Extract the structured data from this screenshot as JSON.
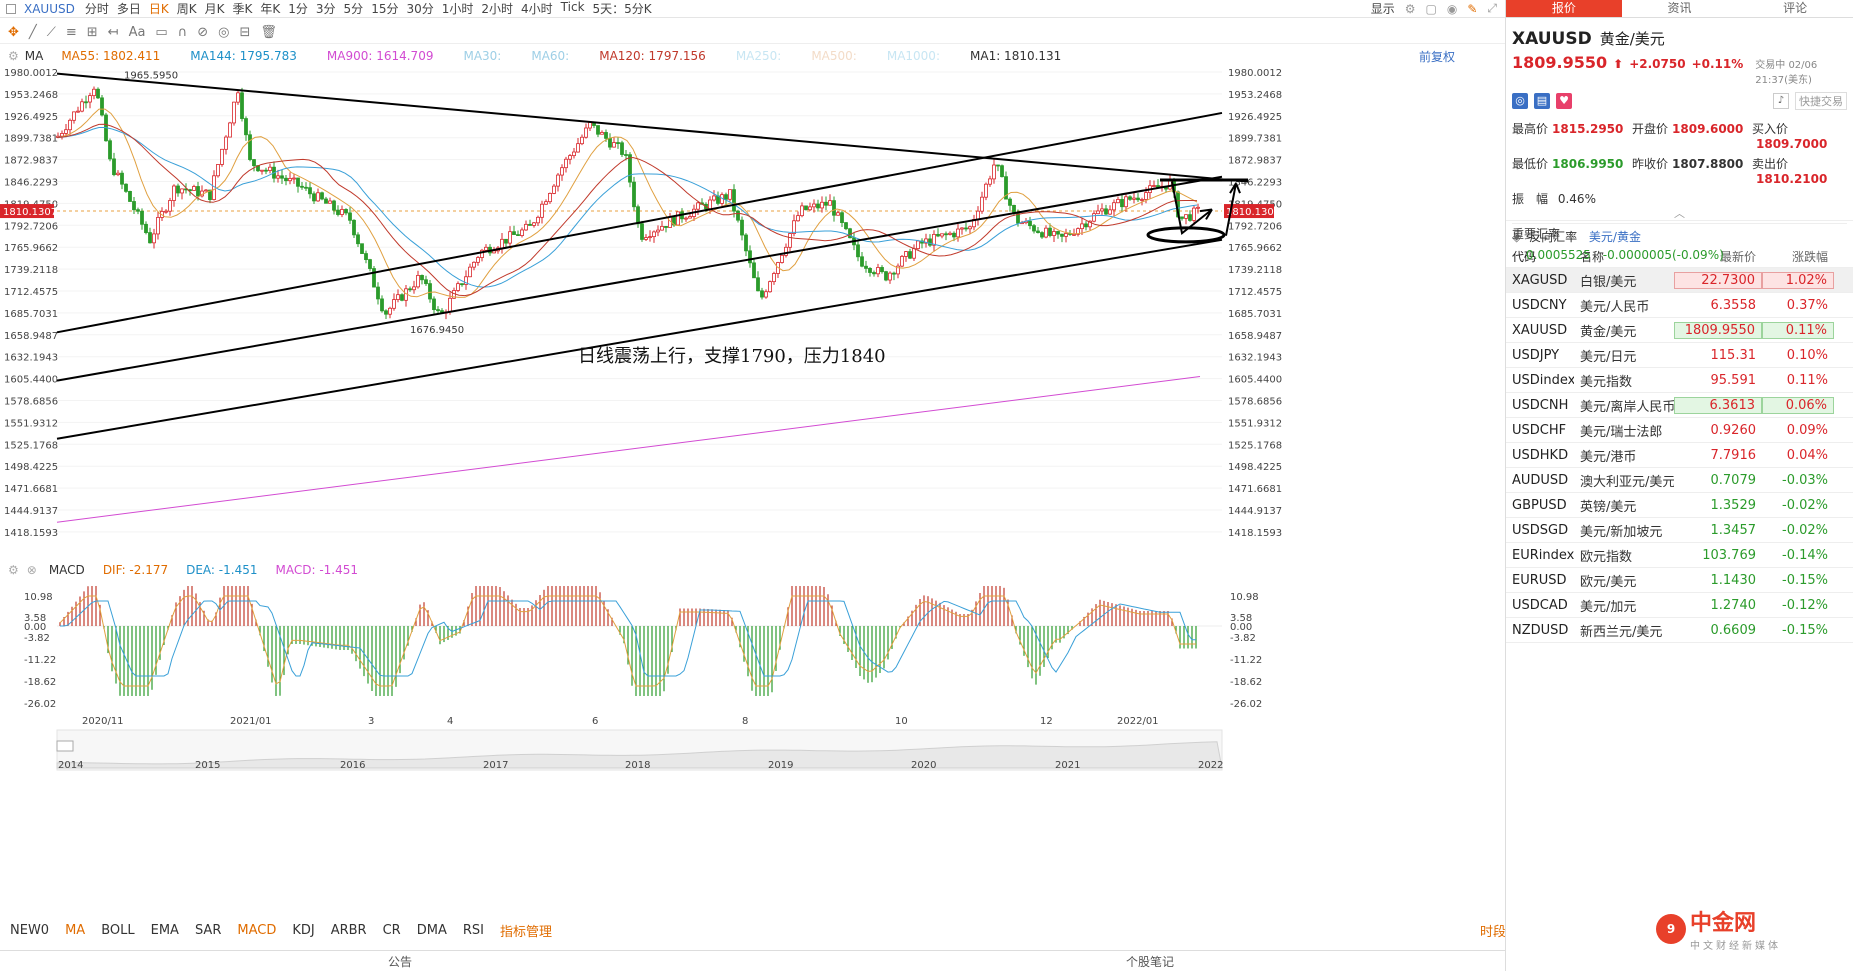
{
  "topbar": {
    "symbol": "XAUUSD",
    "tabs": [
      "分时",
      "多日",
      "日K",
      "周K",
      "月K",
      "季K",
      "年K",
      "1分",
      "3分",
      "5分",
      "15分",
      "30分",
      "1小时",
      "2小时",
      "4小时",
      "Tick",
      "5天：5分K"
    ],
    "active_tab": "日K",
    "display_label": "显示"
  },
  "ma_bar": {
    "label": "MA",
    "items": [
      {
        "text": "MA55: 1802.411",
        "color": "#e06c00"
      },
      {
        "text": "MA144: 1795.783",
        "color": "#1e90c8"
      },
      {
        "text": "MA900: 1614.709",
        "color": "#d24bd2"
      },
      {
        "text": "MA30:",
        "color": "#9ecfe6"
      },
      {
        "text": "MA60:",
        "color": "#9ecfe6"
      },
      {
        "text": "MA120: 1797.156",
        "color": "#c0392b"
      },
      {
        "text": "MA250:",
        "color": "#c8e6f3"
      },
      {
        "text": "MA500:",
        "color": "#f3dcc8"
      },
      {
        "text": "MA1000:",
        "color": "#c8e6f3"
      },
      {
        "text": "MA1: 1810.131",
        "color": "#333333"
      }
    ],
    "adjust": "前复权"
  },
  "price_axis": [
    "1980.0012",
    "1953.2468",
    "1926.4925",
    "1899.7381",
    "1872.9837",
    "1846.2293",
    "1819.4750",
    "1792.7206",
    "1765.9662",
    "1739.2118",
    "1712.4575",
    "1685.7031",
    "1658.9487",
    "1632.1943",
    "1605.4400",
    "1578.6856",
    "1551.9312",
    "1525.1768",
    "1498.4225",
    "1471.6681",
    "1444.9137",
    "1418.1593"
  ],
  "current_price_tag": "1810.1307",
  "annotations": {
    "high": "1965.5950",
    "low": "1676.9450",
    "comment": "日线震荡上行，支撑1790，压力1840"
  },
  "macd_bar": {
    "label": "MACD",
    "dif": "DIF: -2.177",
    "dea": "DEA: -1.451",
    "macd": "MACD: -1.451"
  },
  "macd_axis": [
    "10.98",
    "3.58",
    "0.00",
    "-3.82",
    "-11.22",
    "-18.62",
    "-26.02"
  ],
  "date_axis": [
    "2020/11",
    "2021/01",
    "3",
    "4",
    "6",
    "8",
    "10",
    "12",
    "2022/01"
  ],
  "overview_years": [
    "2014",
    "2015",
    "2016",
    "2017",
    "2018",
    "2019",
    "2020",
    "2021",
    "2022"
  ],
  "indicator_tabs": [
    "NEW0",
    "MA",
    "BOLL",
    "EMA",
    "SAR",
    "MACD",
    "KDJ",
    "ARBR",
    "CR",
    "DMA",
    "RSI",
    "指标管理"
  ],
  "indicator_active": [
    "MA",
    "MACD"
  ],
  "time_label": "时段",
  "footer": {
    "left": "公告",
    "right": "个股笔记"
  },
  "right_panel": {
    "tabs": [
      "报价",
      "资讯",
      "评论"
    ],
    "symbol": "XAUUSD",
    "name": "黄金/美元",
    "price": "1809.9550",
    "change": "+2.0750",
    "change_pct": "+0.11%",
    "trade_time": "交易中 02/06 21:37(美东)",
    "quick_trade": "快捷交易",
    "stats": [
      {
        "label": "最高价",
        "value": "1815.2950",
        "cls": "up"
      },
      {
        "label": "开盘价",
        "value": "1809.6000",
        "cls": "up"
      },
      {
        "label": "买入价",
        "value": "1809.7000",
        "cls": "up"
      },
      {
        "label": "最低价",
        "value": "1806.9950",
        "cls": "dn"
      },
      {
        "label": "昨收价",
        "value": "1807.8800",
        "cls": ""
      },
      {
        "label": "卖出价",
        "value": "1810.2100",
        "cls": "up"
      }
    ],
    "amplitude_label": "振　幅",
    "amplitude": "0.46%",
    "reverse_label": "反向汇率",
    "reverse_pair": "美元/黄金",
    "reverse_value": "0.0005525",
    "reverse_change": "-0.0000005(-0.09%)",
    "section_title": "重要汇率",
    "table_headers": [
      "代码",
      "名称",
      "最新价",
      "涨跌幅"
    ],
    "rows": [
      {
        "code": "XAGUSD",
        "name": "白银/美元",
        "price": "22.7300",
        "pct": "1.02%",
        "dir": "up",
        "hl": "up"
      },
      {
        "code": "USDCNY",
        "name": "美元/人民币",
        "price": "6.3558",
        "pct": "0.37%",
        "dir": "up",
        "hl": ""
      },
      {
        "code": "XAUUSD",
        "name": "黄金/美元",
        "price": "1809.9550",
        "pct": "0.11%",
        "dir": "up",
        "hl": "dn"
      },
      {
        "code": "USDJPY",
        "name": "美元/日元",
        "price": "115.31",
        "pct": "0.10%",
        "dir": "up",
        "hl": ""
      },
      {
        "code": "USDindex",
        "name": "美元指数",
        "price": "95.591",
        "pct": "0.11%",
        "dir": "up",
        "hl": ""
      },
      {
        "code": "USDCNH",
        "name": "美元/离岸人民币",
        "price": "6.3613",
        "pct": "0.06%",
        "dir": "up",
        "hl": "dn"
      },
      {
        "code": "USDCHF",
        "name": "美元/瑞士法郎",
        "price": "0.9260",
        "pct": "0.09%",
        "dir": "up",
        "hl": ""
      },
      {
        "code": "USDHKD",
        "name": "美元/港币",
        "price": "7.7916",
        "pct": "0.04%",
        "dir": "up",
        "hl": ""
      },
      {
        "code": "AUDUSD",
        "name": "澳大利亚元/美元",
        "price": "0.7079",
        "pct": "-0.03%",
        "dir": "dn",
        "hl": ""
      },
      {
        "code": "GBPUSD",
        "name": "英镑/美元",
        "price": "1.3529",
        "pct": "-0.02%",
        "dir": "dn",
        "hl": ""
      },
      {
        "code": "USDSGD",
        "name": "美元/新加坡元",
        "price": "1.3457",
        "pct": "-0.02%",
        "dir": "dn",
        "hl": ""
      },
      {
        "code": "EURindex",
        "name": "欧元指数",
        "price": "103.769",
        "pct": "-0.14%",
        "dir": "dn",
        "hl": ""
      },
      {
        "code": "EURUSD",
        "name": "欧元/美元",
        "price": "1.1430",
        "pct": "-0.15%",
        "dir": "dn",
        "hl": ""
      },
      {
        "code": "USDCAD",
        "name": "美元/加元",
        "price": "1.2740",
        "pct": "-0.12%",
        "dir": "dn",
        "hl": ""
      },
      {
        "code": "NZDUSD",
        "name": "新西兰元/美元",
        "price": "0.6609",
        "pct": "-0.15%",
        "dir": "dn",
        "hl": ""
      }
    ],
    "watermark": "中金网",
    "watermark_sub": "中文财经新媒体"
  }
}
